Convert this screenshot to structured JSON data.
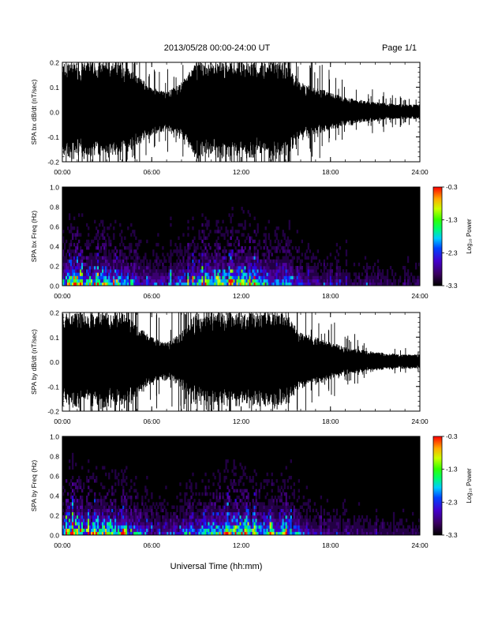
{
  "header": {
    "title": "2013/05/28  00:00-24:00 UT",
    "page": "Page 1/1"
  },
  "xaxis": {
    "label": "Universal Time (hh:mm)",
    "ticks": [
      "00:00",
      "06:00",
      "12:00",
      "18:00",
      "24:00"
    ],
    "range_hours": [
      0,
      24
    ]
  },
  "colorbar": {
    "label": "Log₁₀ Power",
    "ticks": [
      "-0.3",
      "-1.3",
      "-2.3",
      "-3.3"
    ],
    "range": [
      -3.3,
      -0.3
    ]
  },
  "chart_data": [
    {
      "type": "line",
      "name": "bx-waveform",
      "ylabel": "SPA bx dB/dt (nT/sec)",
      "yticks": [
        "0.2",
        "0.1",
        "0.0",
        "-0.1",
        "-0.2"
      ],
      "ylim": [
        -0.2,
        0.2
      ],
      "xlim": [
        0,
        24
      ],
      "amplitude_envelope": {
        "x_hours": [
          0,
          1,
          2,
          3,
          4,
          5,
          6,
          7,
          8,
          9,
          10,
          11,
          12,
          13,
          14,
          15,
          16,
          17,
          18,
          19,
          20,
          21,
          22,
          23,
          24
        ],
        "amplitude": [
          0.2,
          0.2,
          0.2,
          0.2,
          0.2,
          0.15,
          0.1,
          0.08,
          0.12,
          0.2,
          0.2,
          0.2,
          0.2,
          0.2,
          0.2,
          0.2,
          0.12,
          0.1,
          0.08,
          0.06,
          0.05,
          0.04,
          0.035,
          0.03,
          0.03
        ]
      }
    },
    {
      "type": "heatmap",
      "name": "bx-spectrogram",
      "ylabel": "SPA bx Freq (Hz)",
      "yticks": [
        "1.0",
        "0.8",
        "0.6",
        "0.4",
        "0.2",
        "0.0"
      ],
      "ylim": [
        0,
        1
      ],
      "xlim": [
        0,
        24
      ],
      "zrange": [
        -3.3,
        -0.3
      ]
    },
    {
      "type": "line",
      "name": "by-waveform",
      "ylabel": "SPA by dB/dt (nT/sec)",
      "yticks": [
        "0.2",
        "0.1",
        "0.0",
        "-0.1",
        "-0.2"
      ],
      "ylim": [
        -0.2,
        0.2
      ],
      "xlim": [
        0,
        24
      ],
      "amplitude_envelope": {
        "x_hours": [
          0,
          1,
          2,
          3,
          4,
          5,
          6,
          7,
          8,
          9,
          10,
          11,
          12,
          13,
          14,
          15,
          16,
          17,
          18,
          19,
          20,
          21,
          22,
          23,
          24
        ],
        "amplitude": [
          0.2,
          0.2,
          0.2,
          0.2,
          0.2,
          0.15,
          0.1,
          0.08,
          0.12,
          0.2,
          0.2,
          0.2,
          0.2,
          0.2,
          0.2,
          0.2,
          0.12,
          0.1,
          0.08,
          0.06,
          0.05,
          0.04,
          0.035,
          0.03,
          0.03
        ]
      }
    },
    {
      "type": "heatmap",
      "name": "by-spectrogram",
      "ylabel": "SPA by Freq (Hz)",
      "yticks": [
        "1.0",
        "0.8",
        "0.6",
        "0.4",
        "0.2",
        "0.0"
      ],
      "ylim": [
        0,
        1
      ],
      "xlim": [
        0,
        24
      ],
      "zrange": [
        -3.3,
        -0.3
      ]
    }
  ]
}
